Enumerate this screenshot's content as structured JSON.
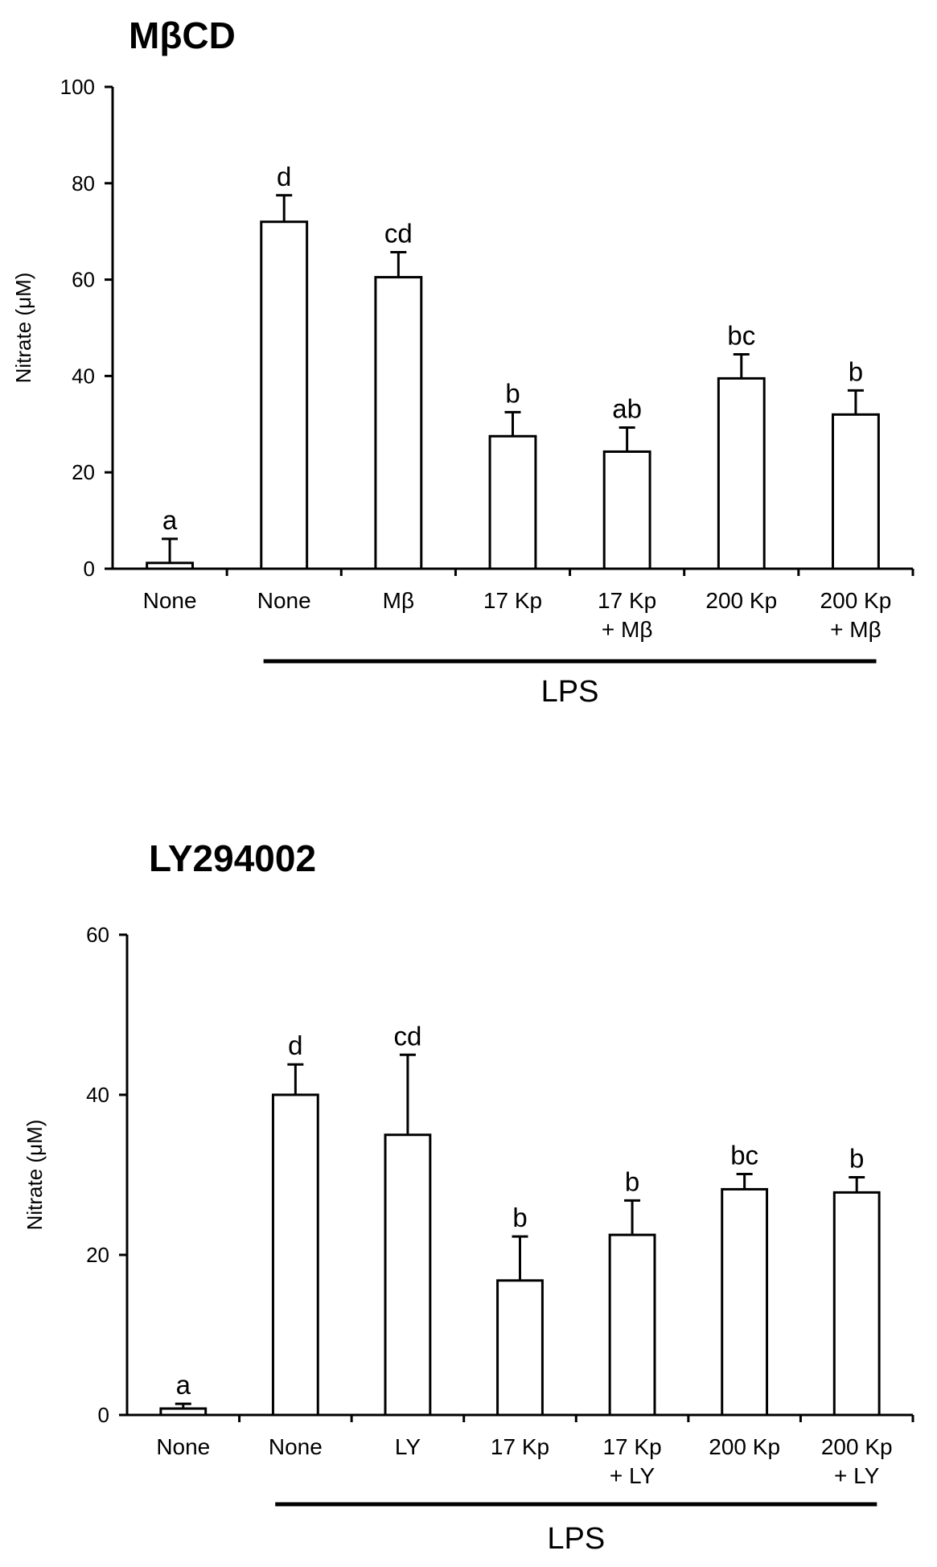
{
  "chart_data": [
    {
      "type": "bar",
      "title": "MβCD",
      "ylabel": "Nitrate (μM)",
      "ylim": [
        0,
        100
      ],
      "yticks": [
        0,
        20,
        40,
        60,
        80,
        100
      ],
      "categories": [
        [
          "None"
        ],
        [
          "None"
        ],
        [
          "Mβ"
        ],
        [
          "17 Kp"
        ],
        [
          "17 Kp",
          "+ Mβ"
        ],
        [
          "200 Kp"
        ],
        [
          "200 Kp",
          "+ Mβ"
        ]
      ],
      "values": [
        1.2,
        72,
        60.5,
        27.5,
        24.3,
        39.5,
        32
      ],
      "errors": [
        5,
        5.5,
        5.2,
        5,
        5,
        5,
        5
      ],
      "significance": [
        "a",
        "d",
        "cd",
        "b",
        "ab",
        "bc",
        "b"
      ],
      "group_label": "LPS",
      "group_range": [
        1,
        6
      ],
      "bar_color": "#ffffff",
      "line_color": "#000000"
    },
    {
      "type": "bar",
      "title": "LY294002",
      "ylabel": "Nitrate (μM)",
      "ylim": [
        0,
        60
      ],
      "yticks": [
        0,
        20,
        40,
        60
      ],
      "categories": [
        [
          "None"
        ],
        [
          "None"
        ],
        [
          "LY"
        ],
        [
          "17 Kp"
        ],
        [
          "17 Kp",
          "+ LY"
        ],
        [
          "200 Kp"
        ],
        [
          "200 Kp",
          "+ LY"
        ]
      ],
      "values": [
        0.8,
        40,
        35,
        16.8,
        22.5,
        28.2,
        27.8
      ],
      "errors": [
        0.6,
        3.8,
        10,
        5.5,
        4.3,
        1.9,
        1.9
      ],
      "significance": [
        "a",
        "d",
        "cd",
        "b",
        "b",
        "bc",
        "b"
      ],
      "group_label": "LPS",
      "group_range": [
        1,
        6
      ],
      "bar_color": "#ffffff",
      "line_color": "#000000"
    }
  ]
}
